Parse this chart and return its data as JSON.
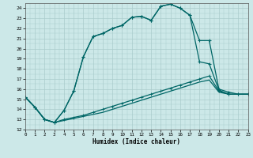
{
  "xlabel": "Humidex (Indice chaleur)",
  "xlim": [
    0,
    23
  ],
  "ylim": [
    12,
    24.5
  ],
  "yticks": [
    12,
    13,
    14,
    15,
    16,
    17,
    18,
    19,
    20,
    21,
    22,
    23,
    24
  ],
  "xticks": [
    0,
    1,
    2,
    3,
    4,
    5,
    6,
    7,
    8,
    9,
    10,
    11,
    12,
    13,
    14,
    15,
    16,
    17,
    18,
    19,
    20,
    21,
    22,
    23
  ],
  "bg_color": "#cce8e8",
  "grid_color": "#aacccc",
  "line_color": "#006666",
  "line1_x": [
    0,
    1,
    2,
    3,
    4,
    5,
    6,
    7,
    8,
    9,
    10,
    11,
    12,
    13,
    14,
    15,
    16,
    17,
    18,
    19,
    20,
    21,
    22,
    23
  ],
  "line1_y": [
    15.2,
    14.2,
    13.0,
    12.7,
    13.9,
    15.8,
    19.2,
    21.2,
    21.5,
    22.0,
    22.3,
    23.1,
    23.2,
    22.8,
    24.2,
    24.4,
    24.0,
    23.3,
    20.8,
    20.8,
    16.0,
    15.7,
    15.5,
    15.5
  ],
  "line2_x": [
    0,
    1,
    2,
    3,
    4,
    5,
    6,
    7,
    8,
    9,
    10,
    11,
    12,
    13,
    14,
    15,
    16,
    17,
    18,
    19,
    20,
    21
  ],
  "line2_y": [
    15.2,
    14.2,
    13.0,
    12.7,
    13.9,
    15.8,
    19.2,
    21.2,
    21.5,
    22.0,
    22.3,
    23.1,
    23.2,
    22.8,
    24.2,
    24.4,
    24.0,
    23.3,
    18.7,
    18.5,
    15.9,
    15.5
  ],
  "line3_x": [
    0,
    1,
    2,
    3,
    4,
    5,
    6,
    7,
    8,
    9,
    10,
    11,
    12,
    13,
    14,
    15,
    16,
    17,
    18,
    19,
    20,
    21,
    22,
    23
  ],
  "line3_y": [
    15.2,
    14.2,
    13.0,
    12.7,
    13.0,
    13.2,
    13.4,
    13.7,
    14.0,
    14.3,
    14.6,
    14.9,
    15.2,
    15.5,
    15.8,
    16.1,
    16.4,
    16.7,
    17.0,
    17.3,
    15.8,
    15.5,
    15.5,
    15.5
  ],
  "line4_x": [
    0,
    1,
    2,
    3,
    4,
    5,
    6,
    7,
    8,
    9,
    10,
    11,
    12,
    13,
    14,
    15,
    16,
    17,
    18,
    19,
    20,
    21,
    22,
    23
  ],
  "line4_y": [
    15.2,
    14.2,
    13.0,
    12.7,
    12.9,
    13.1,
    13.3,
    13.5,
    13.7,
    14.0,
    14.3,
    14.6,
    14.9,
    15.2,
    15.5,
    15.8,
    16.1,
    16.4,
    16.7,
    16.9,
    15.7,
    15.5,
    15.5,
    15.5
  ]
}
